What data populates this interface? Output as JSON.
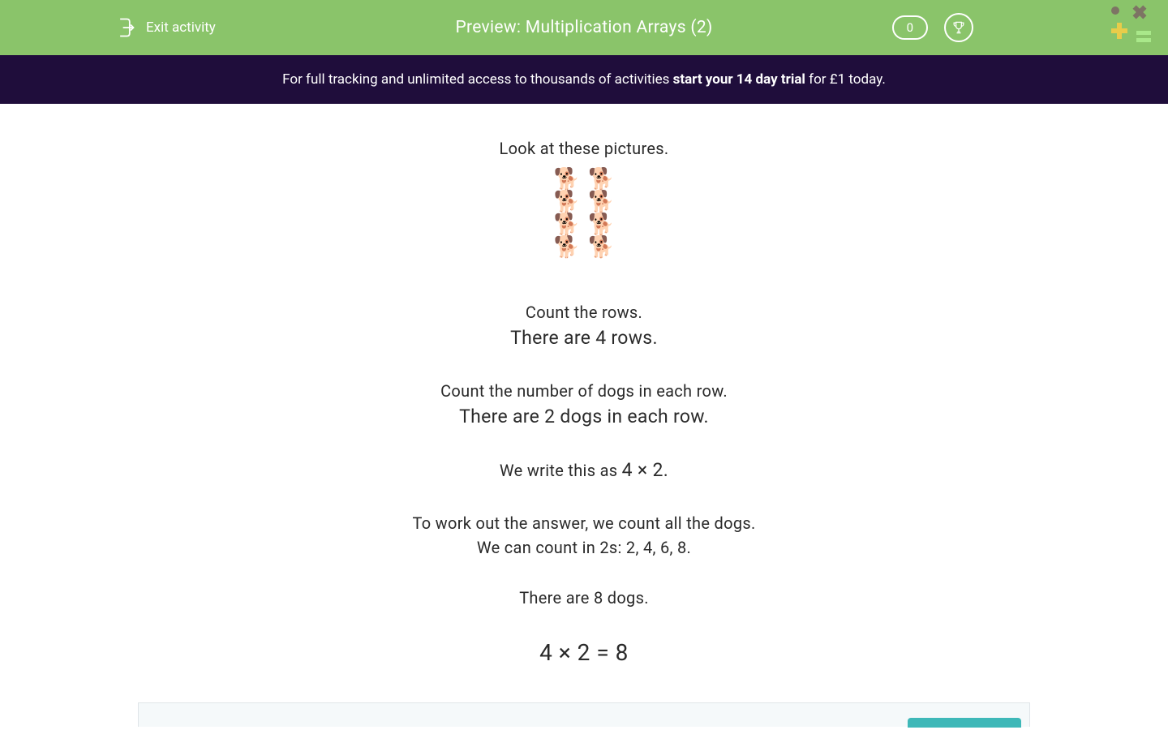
{
  "header": {
    "exit_label": "Exit activity",
    "title": "Preview: Multiplication Arrays (2)",
    "score": "0",
    "accent_color": "#8ac46a",
    "decoration_colors": {
      "circle": "#7d7464",
      "cross": "#7d7464",
      "plus": "#e8cc4a",
      "equals": "#a9e88a"
    }
  },
  "banner": {
    "text_before": "For full tracking and unlimited access to thousands of activities ",
    "text_bold": "start your 14 day trial",
    "text_after": " for £1 today.",
    "background_color": "#1f0d3b"
  },
  "content": {
    "intro": "Look at these pictures.",
    "array": {
      "rows": 4,
      "cols": 2,
      "icon": "🐕"
    },
    "count_rows_label": "Count the rows.",
    "count_rows_result": "There are 4 rows.",
    "count_cols_label": "Count the number of dogs in each row.",
    "count_cols_result": "There are 2 dogs in each row.",
    "equation_intro_before": "We write this as ",
    "equation_intro_value": "4 × 2.",
    "workout_1": "To work out the answer, we count all the dogs.",
    "workout_2": "We can count in 2s: 2, 4, 6, 8.",
    "result_text": "There are 8 dogs.",
    "final_equation": "4 × 2 = 8"
  },
  "footer": {
    "button_color": "#3eb8b8"
  }
}
